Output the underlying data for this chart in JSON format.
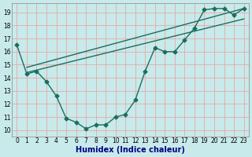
{
  "xlabel": "Humidex (Indice chaleur)",
  "bg_color": "#c8eaea",
  "grid_color": "#e8a8a8",
  "line_color": "#1a6e60",
  "xlim": [
    -0.5,
    23.5
  ],
  "ylim": [
    9.5,
    19.7
  ],
  "xticks": [
    0,
    1,
    2,
    3,
    4,
    5,
    6,
    7,
    8,
    9,
    10,
    11,
    12,
    13,
    14,
    15,
    16,
    17,
    18,
    19,
    20,
    21,
    22,
    23
  ],
  "yticks": [
    10,
    11,
    12,
    13,
    14,
    15,
    16,
    17,
    18,
    19
  ],
  "line1_x": [
    0,
    1,
    2,
    3,
    4,
    5,
    6,
    7,
    8,
    9,
    10,
    11,
    12,
    13,
    14,
    15,
    16,
    17,
    18,
    19,
    20,
    21,
    22,
    23
  ],
  "line1_y": [
    16.5,
    14.3,
    14.5,
    13.7,
    12.6,
    10.9,
    10.6,
    10.1,
    10.4,
    10.4,
    11.0,
    11.2,
    12.3,
    14.5,
    16.3,
    16.0,
    16.0,
    16.9,
    17.8,
    19.2,
    19.3,
    19.3,
    18.8,
    19.3
  ],
  "line2_x": [
    1,
    23
  ],
  "line2_y": [
    14.8,
    19.3
  ],
  "line3_x": [
    1,
    23
  ],
  "line3_y": [
    14.4,
    18.5
  ],
  "marker": "D",
  "markersize": 2.5,
  "linewidth": 1.0,
  "tick_fontsize": 5.5,
  "xlabel_fontsize": 7
}
